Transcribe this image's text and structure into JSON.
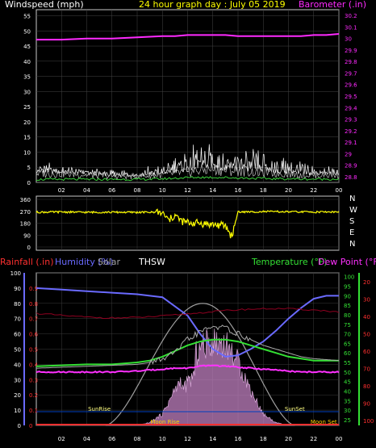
{
  "colors": {
    "wind": "#c0c0c0",
    "wind_gust": "#ffffff",
    "wind_avg": "#3cd23c",
    "barometer": "#ff2aff",
    "direction": "#ffff00",
    "rainfall": "#ff3030",
    "humidity": "#6a6aff",
    "solar": "#a0a0a0",
    "thsw": "#ffffff",
    "temperature": "#34e034",
    "dewpoint": "#ff30ff",
    "title": "#ffff00",
    "sun": "#ffff80",
    "moon": "#ffd000"
  },
  "panels": {
    "wind_title": "Windspeed (mph)",
    "graph_title": "24 hour graph day : July 05 2019",
    "baro_title": "Barometer (.in)",
    "rain_title": "Rainfall (.in)",
    "humidity_title": "Humidity (%)",
    "solar_title": "Solar",
    "thsw_title": "THSW",
    "temp_title": "Temperature (°F)",
    "dew_title": "Dew Point (°F)",
    "sunrise": "SunRise",
    "sunset": "SunSet",
    "moonrise": "Moon Rise",
    "moonset": "Moon Set"
  },
  "chart_data": [
    {
      "type": "line",
      "x_ticks": [
        "02",
        "04",
        "06",
        "08",
        "10",
        "12",
        "14",
        "16",
        "18",
        "20",
        "22",
        "00"
      ],
      "y_left_ticks": [
        "0",
        "5",
        "10",
        "15",
        "20",
        "25",
        "30",
        "35",
        "40",
        "45",
        "50",
        "55"
      ],
      "ylim_left": [
        0,
        57
      ],
      "y_right_ticks": [
        "28.8",
        "28.9",
        "29",
        "29.1",
        "29.2",
        "29.3",
        "29.4",
        "29.5",
        "29.6",
        "29.7",
        "29.8",
        "29.9",
        "30",
        "30.1",
        "30.2"
      ],
      "ylim_right": [
        28.75,
        30.25
      ],
      "x": [
        0,
        2,
        4,
        6,
        8,
        10,
        11,
        12,
        13,
        14,
        15,
        16,
        17,
        18,
        19,
        20,
        21,
        22,
        23,
        24
      ],
      "series": [
        {
          "axis": "left",
          "values": [
            3,
            3,
            2.5,
            2,
            2,
            2.5,
            3,
            3.5,
            4,
            4.5,
            4,
            4,
            3.5,
            3.5,
            3,
            3,
            2.5,
            2.5,
            2.5,
            2.5
          ]
        },
        {
          "axis": "left",
          "values": [
            7,
            5,
            5,
            4,
            4,
            6,
            8,
            10,
            12,
            13,
            12,
            11,
            10,
            9,
            8,
            7,
            6,
            6,
            5,
            5
          ]
        },
        {
          "axis": "left",
          "values": [
            1,
            1,
            1,
            1,
            1,
            1.2,
            1.4,
            1.6,
            1.7,
            1.7,
            1.6,
            1.5,
            1.4,
            1.3,
            1.2,
            1.2,
            1.1,
            1.1,
            1.1,
            1.1
          ]
        },
        {
          "axis": "right",
          "values": [
            29.99,
            29.99,
            30.0,
            30.0,
            30.01,
            30.02,
            30.02,
            30.03,
            30.03,
            30.03,
            30.03,
            30.02,
            30.02,
            30.02,
            30.02,
            30.02,
            30.02,
            30.03,
            30.03,
            30.04
          ]
        }
      ]
    },
    {
      "type": "line",
      "y_ticks": [
        "360",
        "270",
        "180",
        "90",
        "0"
      ],
      "ylim": [
        0,
        360
      ],
      "direction_labels": [
        "N",
        "W",
        "S",
        "E",
        "N"
      ],
      "x": [
        0,
        2,
        4,
        6,
        8,
        9,
        9.5,
        10,
        10.5,
        11,
        11.5,
        12,
        13,
        14,
        15,
        15.5,
        16,
        17,
        18,
        20,
        22,
        24
      ],
      "series": [
        {
          "name": "Wind direction",
          "values": [
            263,
            265,
            262,
            263,
            262,
            263,
            262,
            255,
            200,
            240,
            195,
            185,
            180,
            170,
            160,
            80,
            265,
            265,
            268,
            266,
            265,
            265
          ]
        }
      ]
    },
    {
      "type": "line",
      "y_left_ticks": [
        "0",
        "10",
        "20",
        "30",
        "40",
        "50",
        "60",
        "70",
        "80",
        "90",
        "100"
      ],
      "ylim_left": [
        0,
        100
      ],
      "rain_ticks": [
        "0",
        "0.1",
        "0.2",
        "0.3",
        "0.4",
        "0.5",
        "0.6",
        "0.7",
        "0.8",
        "0.9"
      ],
      "temp_ticks": [
        "25",
        "30",
        "35",
        "40",
        "45",
        "50",
        "55",
        "60",
        "65",
        "70",
        "75",
        "80",
        "85",
        "90",
        "95",
        "100"
      ],
      "ylim_temp": [
        22,
        102
      ],
      "dew_ticks": [
        "20",
        "30",
        "40",
        "50",
        "60",
        "70",
        "80",
        "90",
        "100"
      ],
      "x": [
        0,
        2,
        4,
        6,
        8,
        9,
        10,
        11,
        12,
        13,
        14,
        15,
        16,
        17,
        18,
        19,
        20,
        21,
        22,
        23,
        24
      ],
      "series": [
        {
          "axis": "humidity",
          "values": [
            90,
            89,
            88,
            87,
            86,
            85,
            84,
            78,
            72,
            60,
            50,
            45,
            46,
            50,
            55,
            62,
            70,
            77,
            83,
            85,
            85
          ]
        },
        {
          "axis": "temp",
          "values": [
            53,
            53.5,
            54,
            54,
            55,
            56,
            58,
            61,
            64,
            66,
            67,
            67,
            66,
            64,
            62,
            60,
            58,
            57,
            56,
            56,
            56
          ]
        },
        {
          "axis": "temp",
          "values": [
            50,
            50,
            50,
            50,
            50.5,
            51,
            51.5,
            52,
            52,
            53,
            53.5,
            53,
            52.5,
            52,
            51.5,
            51,
            50.5,
            50,
            50,
            50,
            50
          ]
        },
        {
          "axis": "temp",
          "values": [
            52,
            52.5,
            53,
            53.5,
            54,
            55,
            57,
            60,
            67,
            71,
            74,
            73,
            70,
            67,
            64,
            62,
            60,
            58,
            57,
            56.5,
            56
          ]
        },
        {
          "axis": "humidity",
          "values": [
            0,
            0,
            0,
            0,
            0,
            2,
            8,
            25,
            40,
            55,
            60,
            58,
            45,
            25,
            8,
            2,
            0,
            0,
            0,
            0,
            0
          ]
        },
        {
          "axis": "humidity",
          "values": [
            0,
            0,
            0,
            0,
            0,
            0.5,
            0.5,
            0.6,
            0.6,
            0.7,
            0.7,
            0.7,
            0.6,
            0.6,
            0.5,
            0.5,
            0.5,
            0,
            0,
            0,
            0
          ]
        }
      ],
      "solar_envelope": {
        "start": 5.5,
        "end": 20.5,
        "peak_x": 13.2,
        "peak": 80
      }
    }
  ]
}
